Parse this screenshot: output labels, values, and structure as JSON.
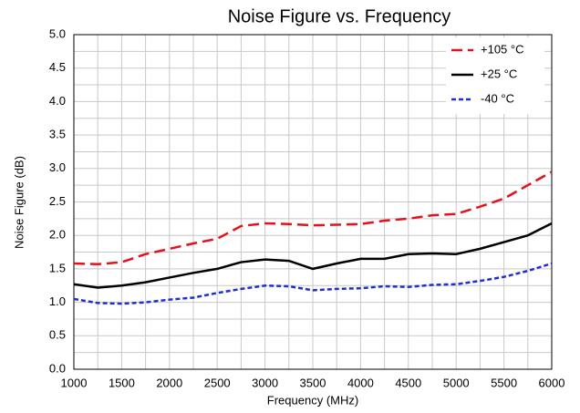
{
  "chart_data": {
    "type": "line",
    "title": "Noise Figure vs. Frequency",
    "xlabel": "Frequency (MHz)",
    "ylabel": "Noise Figure (dB)",
    "x": [
      1000,
      1250,
      1500,
      1750,
      2000,
      2250,
      2500,
      2750,
      3000,
      3250,
      3500,
      3750,
      4000,
      4250,
      4500,
      4750,
      5000,
      5250,
      5500,
      5750,
      6000
    ],
    "series": [
      {
        "name": "+105 °C",
        "color": "#e8101a",
        "dash": "dash",
        "values": [
          1.58,
          1.57,
          1.6,
          1.72,
          1.8,
          1.88,
          1.95,
          2.14,
          2.18,
          2.17,
          2.15,
          2.16,
          2.17,
          2.22,
          2.25,
          2.3,
          2.32,
          2.43,
          2.55,
          2.75,
          2.95
        ]
      },
      {
        "name": "+25 °C",
        "color": "#000000",
        "dash": "solid",
        "values": [
          1.27,
          1.22,
          1.25,
          1.3,
          1.37,
          1.44,
          1.5,
          1.6,
          1.64,
          1.62,
          1.5,
          1.58,
          1.65,
          1.65,
          1.72,
          1.73,
          1.72,
          1.8,
          1.9,
          2.0,
          2.18
        ]
      },
      {
        "name": "-40 °C",
        "color": "#1f2de0",
        "dash": "dot",
        "values": [
          1.05,
          0.99,
          0.98,
          1.0,
          1.04,
          1.07,
          1.14,
          1.2,
          1.25,
          1.24,
          1.18,
          1.2,
          1.21,
          1.24,
          1.23,
          1.26,
          1.27,
          1.32,
          1.38,
          1.47,
          1.58
        ]
      }
    ],
    "xlim": [
      1000,
      6000
    ],
    "xticks": [
      1000,
      1500,
      2000,
      2500,
      3000,
      3500,
      4000,
      4500,
      5000,
      5500,
      6000
    ],
    "x_minor_ticks": [
      1250,
      1750,
      2250,
      2750,
      3250,
      3750,
      4250,
      4750,
      5250,
      5750
    ],
    "ylim": [
      0,
      5
    ],
    "yticks": [
      {
        "value": 0,
        "label": "0.0"
      },
      0.5,
      {
        "value": 1,
        "label": "1.0"
      },
      1.5,
      {
        "value": 2,
        "label": "2.0"
      },
      2.5,
      {
        "value": 3,
        "label": "3.0"
      },
      3.5,
      {
        "value": 4,
        "label": "4.0"
      },
      4.5,
      {
        "value": 5,
        "label": "5.0"
      }
    ],
    "y_minor_ticks": [
      0.25,
      0.75,
      1.25,
      1.75,
      2.25,
      2.75,
      3.25,
      3.75,
      4.25,
      4.75
    ],
    "grid": true,
    "legend": "upper right"
  }
}
